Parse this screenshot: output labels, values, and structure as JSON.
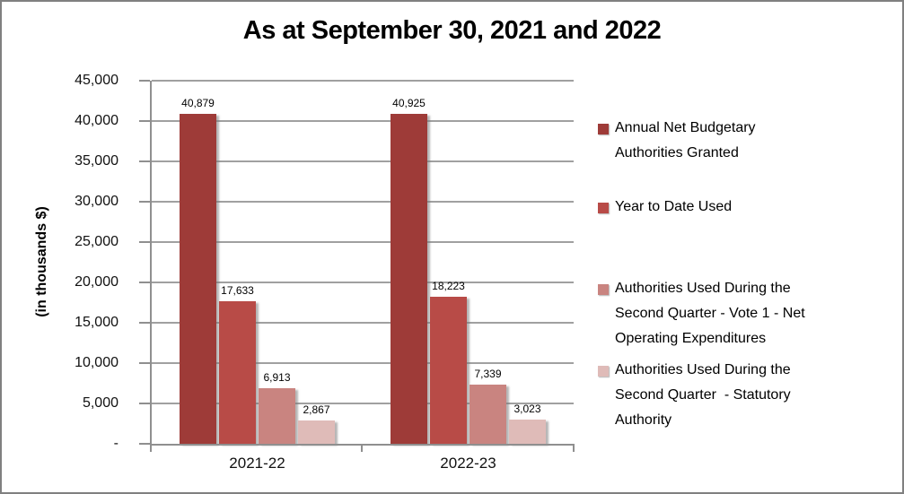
{
  "window": {
    "background": "#FFFFFF",
    "border_color": "#808080"
  },
  "colors": {
    "grid": "#A0A0A0",
    "axis": "#8F8F8F",
    "text": "#000000"
  },
  "chart_data": {
    "type": "bar",
    "title": "As at September 30, 2021 and 2022",
    "xlabel": "",
    "ylabel": "(in thousands $)",
    "ylim": [
      0,
      45000
    ],
    "y_tick_step": 5000,
    "grid": true,
    "legend_position": "right",
    "categories": [
      "2021-22",
      "2022-23"
    ],
    "y_tick_labels": [
      "45,000",
      "40,000",
      "35,000",
      "30,000",
      "25,000",
      "20,000",
      "15,000",
      "10,000",
      "5,000",
      "-"
    ],
    "series": [
      {
        "name": "Annual Net Budgetary Authorities Granted",
        "color": "#9E3B38",
        "values": [
          40879,
          40925
        ],
        "value_labels": [
          "40,879",
          "40,925"
        ]
      },
      {
        "name": "Year to Date Used",
        "color": "#B84B47",
        "values": [
          17633,
          18223
        ],
        "value_labels": [
          "17,633",
          "18,223"
        ]
      },
      {
        "name": "Authorities Used During the Second Quarter - Vote 1 - Net Operating Expenditures",
        "color": "#C98480",
        "values": [
          6913,
          7339
        ],
        "value_labels": [
          "6,913",
          "7,339"
        ]
      },
      {
        "name": "Authorities Used During the Second Quarter  - Statutory Authority",
        "color": "#DFBBB8",
        "values": [
          2867,
          3023
        ],
        "value_labels": [
          "2,867",
          "3,023"
        ]
      }
    ]
  }
}
